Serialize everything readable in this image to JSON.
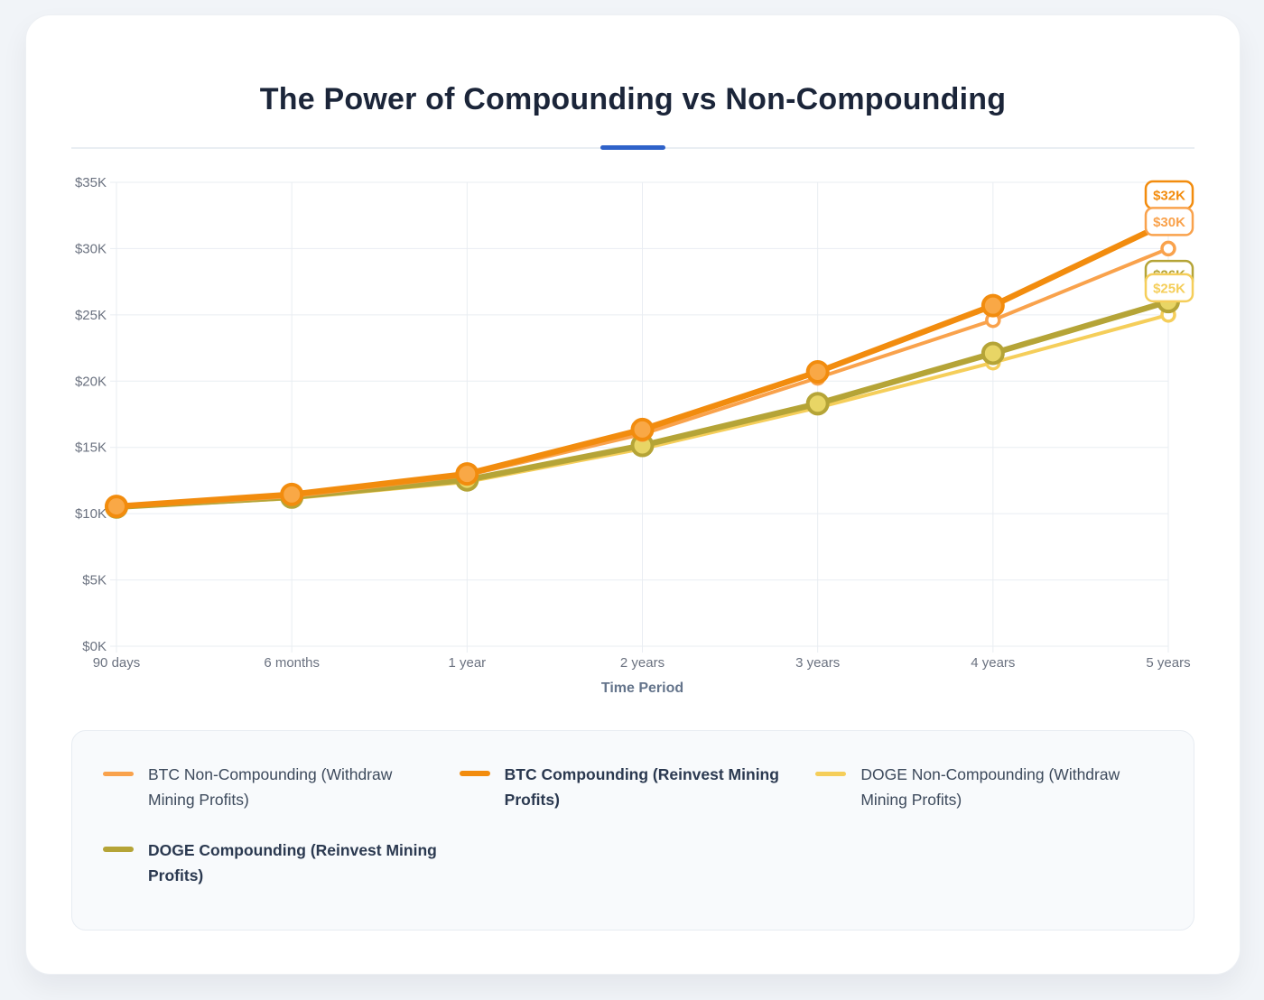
{
  "page": {
    "title": "The Power of Compounding vs Non-Compounding",
    "accent_color": "#2f62c9",
    "grid_color": "#e9edf2",
    "tick_color": "#6b7280"
  },
  "chart_data": {
    "type": "line",
    "title": "The Power of Compounding vs Non-Compounding",
    "xlabel": "Time Period",
    "ylabel": "",
    "grid": true,
    "legend_position": "bottom",
    "ylim": [
      0,
      35000
    ],
    "y_ticks": [
      {
        "value": 0,
        "label": "$0K"
      },
      {
        "value": 5000,
        "label": "$5K"
      },
      {
        "value": 10000,
        "label": "$10K"
      },
      {
        "value": 15000,
        "label": "$15K"
      },
      {
        "value": 20000,
        "label": "$20K"
      },
      {
        "value": 25000,
        "label": "$25K"
      },
      {
        "value": 30000,
        "label": "$30K"
      },
      {
        "value": 35000,
        "label": "$35K"
      }
    ],
    "categories": [
      "90 days",
      "6 months",
      "1 year",
      "2 years",
      "3 years",
      "4 years",
      "5 years"
    ],
    "series": [
      {
        "id": "btc-non-compounding",
        "name": "BTC Non-Compounding (Withdraw Mining Profits)",
        "color": "#F9A24C",
        "emphasis": false,
        "marker": "open",
        "values": [
          10500,
          11300,
          12900,
          16000,
          20250,
          24600,
          30000
        ],
        "end_label": "$30K"
      },
      {
        "id": "btc-compounding",
        "name": "BTC Compounding (Reinvest Mining Profits)",
        "color": "#F28C0E",
        "emphasis": true,
        "marker": "filled",
        "marker_fill": "#F9A846",
        "values": [
          10550,
          11450,
          13000,
          16350,
          20700,
          25700,
          32000
        ],
        "end_label": "$32K"
      },
      {
        "id": "doge-non-compounding",
        "name": "DOGE Non-Compounding (Withdraw Mining Profits)",
        "color": "#F5CE5A",
        "emphasis": false,
        "marker": "open",
        "values": [
          10450,
          11150,
          12400,
          14900,
          18000,
          21400,
          25000
        ],
        "end_label": "$25K"
      },
      {
        "id": "doge-compounding",
        "name": "DOGE Compounding (Reinvest Mining Profits)",
        "color": "#B5A437",
        "emphasis": true,
        "marker": "filled",
        "marker_fill": "#E8D565",
        "values": [
          10500,
          11250,
          12550,
          15150,
          18300,
          22100,
          26000
        ],
        "end_label": "$26K"
      }
    ]
  }
}
